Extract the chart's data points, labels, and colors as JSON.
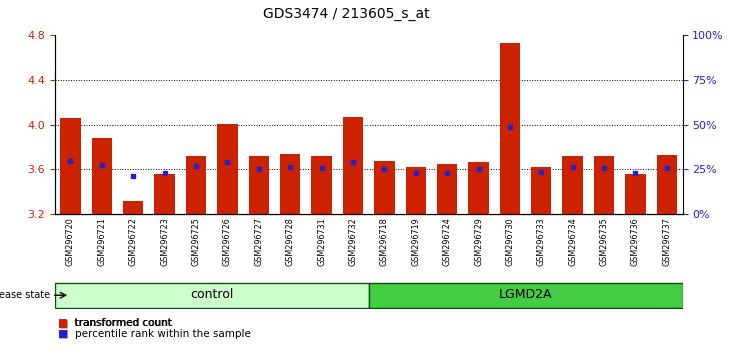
{
  "title": "GDS3474 / 213605_s_at",
  "samples": [
    "GSM296720",
    "GSM296721",
    "GSM296722",
    "GSM296723",
    "GSM296725",
    "GSM296726",
    "GSM296727",
    "GSM296728",
    "GSM296731",
    "GSM296732",
    "GSM296718",
    "GSM296719",
    "GSM296724",
    "GSM296729",
    "GSM296730",
    "GSM296733",
    "GSM296734",
    "GSM296735",
    "GSM296736",
    "GSM296737"
  ],
  "bar_values": [
    4.06,
    3.88,
    3.32,
    3.56,
    3.72,
    4.01,
    3.72,
    3.74,
    3.72,
    4.07,
    3.68,
    3.62,
    3.65,
    3.67,
    4.73,
    3.62,
    3.72,
    3.72,
    3.56,
    3.73
  ],
  "percentile_values": [
    3.68,
    3.64,
    3.54,
    3.57,
    3.63,
    3.67,
    3.6,
    3.62,
    3.61,
    3.67,
    3.6,
    3.57,
    3.57,
    3.6,
    3.98,
    3.58,
    3.62,
    3.61,
    3.57,
    3.61
  ],
  "n_control": 10,
  "n_lgmd": 10,
  "y_min": 3.2,
  "y_max": 4.8,
  "y_ticks": [
    3.2,
    3.6,
    4.0,
    4.4,
    4.8
  ],
  "y2_ticks": [
    0,
    25,
    50,
    75,
    100
  ],
  "bar_color": "#cc2200",
  "percentile_color": "#2222cc",
  "bar_bottom": 3.2,
  "control_bg": "#ccffcc",
  "lgmd2a_bg": "#44cc44",
  "tick_label_color_left": "#cc2200",
  "tick_label_color_right": "#2222cc",
  "grid_lines": [
    3.6,
    4.0,
    4.4
  ],
  "xticklabel_bg": "#c8c8c8"
}
